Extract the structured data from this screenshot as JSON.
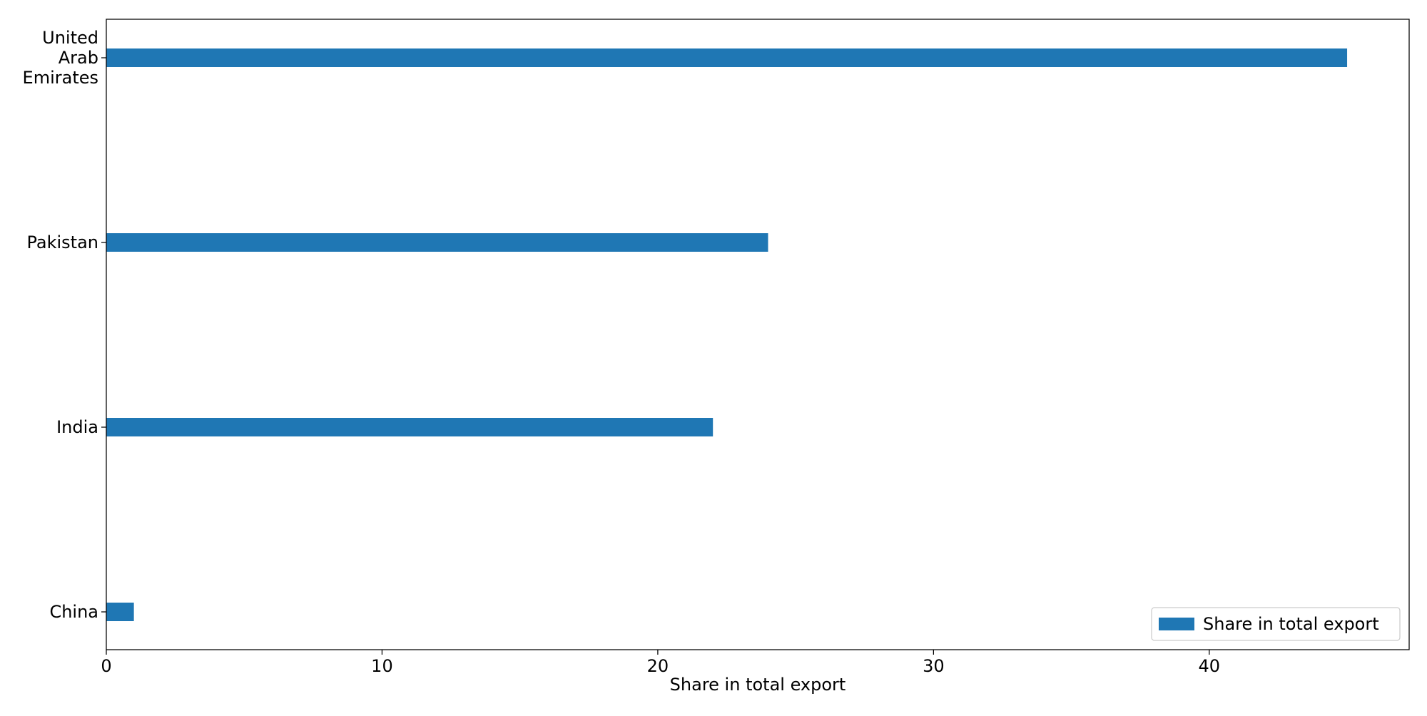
{
  "chart_data": {
    "type": "bar",
    "orientation": "horizontal",
    "categories": [
      "China",
      "India",
      "Pakistan",
      "United Arab Emirates"
    ],
    "category_tick_labels": [
      [
        "China"
      ],
      [
        "India"
      ],
      [
        "Pakistan"
      ],
      [
        "United",
        "Arab",
        "Emirates"
      ]
    ],
    "series": [
      {
        "name": "Share in total export",
        "values": [
          1.0,
          22.0,
          24.0,
          45.0
        ],
        "color": "#1f77b4"
      }
    ],
    "xlabel": "Share in total export",
    "ylabel": "",
    "xlim": [
      0,
      47.25
    ],
    "xticks": [
      0,
      10,
      20,
      30,
      40
    ],
    "xtick_labels": [
      "0",
      "10",
      "20",
      "30",
      "40"
    ],
    "grid": false,
    "legend": {
      "position": "lower-right",
      "entries": [
        "Share in total export"
      ]
    }
  }
}
